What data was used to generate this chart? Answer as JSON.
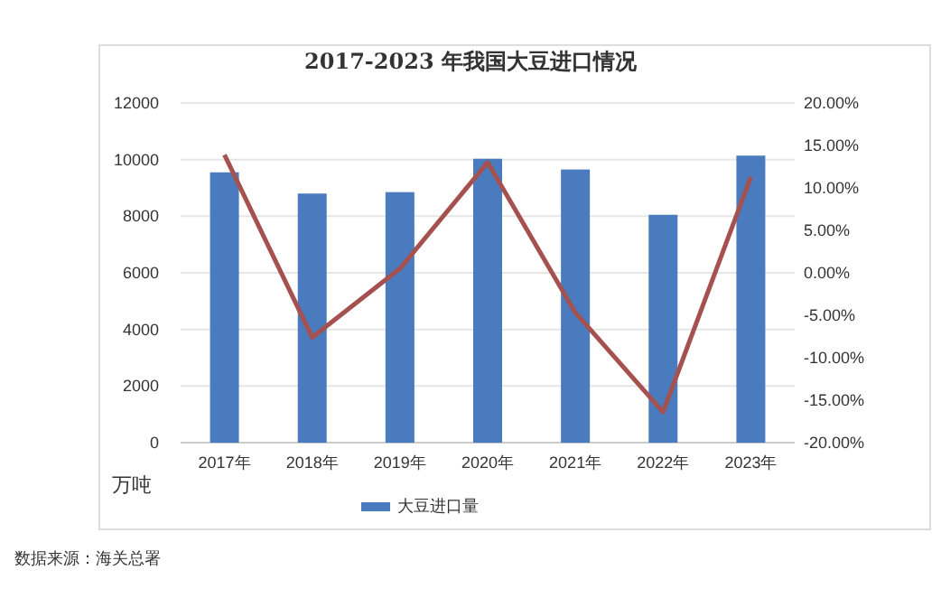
{
  "chart_data": {
    "type": "bar",
    "title": "2017-2023 年我国大豆进口情况",
    "ylabel": "万吨",
    "categories": [
      "2017年",
      "2018年",
      "2019年",
      "2020年",
      "2021年",
      "2022年",
      "2023年"
    ],
    "series": [
      {
        "name": "大豆进口量",
        "color": "#4a7bbf",
        "values": [
          9550,
          8800,
          8850,
          10030,
          9650,
          8050,
          10140
        ]
      },
      {
        "type": "line",
        "axis": "y2",
        "color": "#a5514f",
        "values": [
          13.9,
          -7.6,
          0.5,
          13.0,
          -4.7,
          -16.4,
          11.3
        ]
      }
    ],
    "ylim": [
      0,
      12000
    ],
    "yticks": [
      0,
      2000,
      4000,
      6000,
      8000,
      10000,
      12000
    ],
    "y2lim": [
      -20,
      20
    ],
    "y2ticks": [
      {
        "value": -20,
        "label": "-20.00%"
      },
      {
        "value": -15,
        "label": "-15.00%"
      },
      {
        "value": -10,
        "label": "-10.00%"
      },
      {
        "value": -5,
        "label": "-5.00%"
      },
      {
        "value": 0,
        "label": "0.00%"
      },
      {
        "value": 5,
        "label": "5.00%"
      },
      {
        "value": 10,
        "label": "10.00%"
      },
      {
        "value": 15,
        "label": "15.00%"
      },
      {
        "value": 20,
        "label": "20.00%"
      }
    ],
    "grid": "y",
    "legend": "bottom",
    "marker": "none",
    "line_style": "solid",
    "annotations": [
      "数据来源：海关总署"
    ]
  }
}
